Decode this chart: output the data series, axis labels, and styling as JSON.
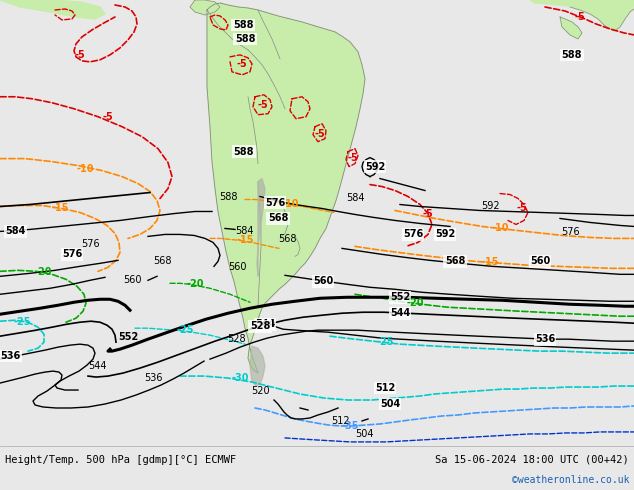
{
  "title_left": "Height/Temp. 500 hPa [gdmp][°C] ECMWF",
  "title_right": "Sa 15-06-2024 18:00 UTC (00+42)",
  "credit": "©weatheronline.co.uk",
  "bg_color": "#e8e8e8",
  "land_color": "#c8edaa",
  "gray_land_color": "#b0b8a8",
  "ocean_color": "#e8e8e8",
  "bottom_bar_color": "#e0e0e0",
  "font_color_left": "#000000",
  "font_color_right": "#000000",
  "font_color_credit": "#1a5fb4",
  "figsize": [
    6.34,
    4.9
  ],
  "dpi": 100
}
